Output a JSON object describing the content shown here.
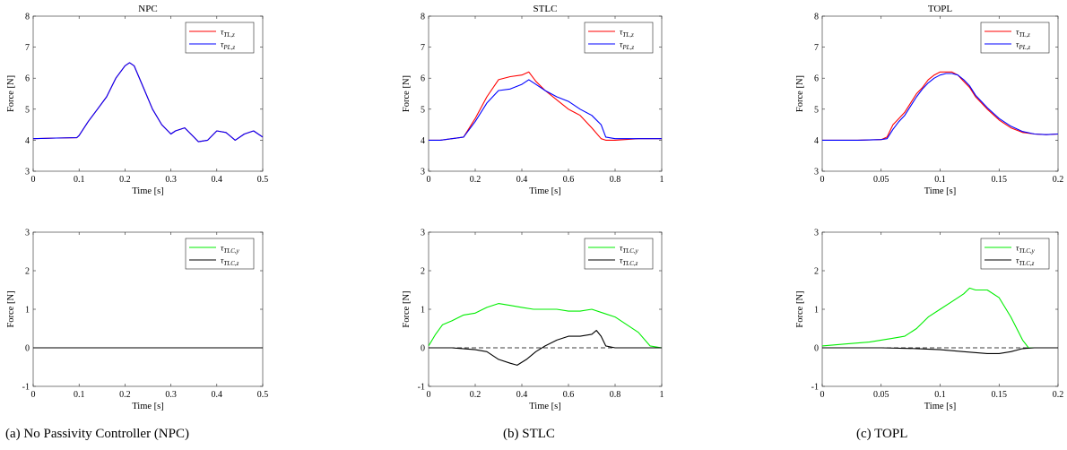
{
  "chart_data": [
    {
      "type": "line",
      "title": "NPC",
      "xlabel": "Time [s]",
      "ylabel": "Force [N]",
      "xlim": [
        0,
        0.5
      ],
      "ylim": [
        3,
        8
      ],
      "xticks": [
        "0",
        "0.1",
        "0.2",
        "0.3",
        "0.4",
        "0.5"
      ],
      "yticks": [
        "3",
        "4",
        "5",
        "6",
        "7",
        "8"
      ],
      "legend": "top-right",
      "series": [
        {
          "name": "τ_{TL,z}",
          "color": "#ff0000",
          "x": [
            0,
            0.05,
            0.095,
            0.1,
            0.12,
            0.14,
            0.16,
            0.18,
            0.2,
            0.21,
            0.22,
            0.24,
            0.26,
            0.28,
            0.3,
            0.31,
            0.33,
            0.35,
            0.36,
            0.38,
            0.4,
            0.42,
            0.44,
            0.46,
            0.48,
            0.5
          ],
          "y": [
            4.05,
            4.07,
            4.08,
            4.15,
            4.6,
            5.0,
            5.4,
            6.0,
            6.4,
            6.5,
            6.4,
            5.7,
            5.0,
            4.5,
            4.2,
            4.3,
            4.4,
            4.1,
            3.95,
            4.0,
            4.3,
            4.25,
            4.0,
            4.2,
            4.3,
            4.1
          ]
        },
        {
          "name": "τ_{PL,z}",
          "color": "#0000ff",
          "x": [
            0,
            0.05,
            0.095,
            0.1,
            0.12,
            0.14,
            0.16,
            0.18,
            0.2,
            0.21,
            0.22,
            0.24,
            0.26,
            0.28,
            0.3,
            0.31,
            0.33,
            0.35,
            0.36,
            0.38,
            0.4,
            0.42,
            0.44,
            0.46,
            0.48,
            0.5
          ],
          "y": [
            4.05,
            4.07,
            4.08,
            4.15,
            4.6,
            5.0,
            5.4,
            6.0,
            6.4,
            6.5,
            6.4,
            5.7,
            5.0,
            4.5,
            4.2,
            4.3,
            4.4,
            4.1,
            3.95,
            4.0,
            4.3,
            4.25,
            4.0,
            4.2,
            4.3,
            4.1
          ]
        }
      ]
    },
    {
      "type": "line",
      "title": "STLC",
      "xlabel": "Time [s]",
      "ylabel": "Force [N]",
      "xlim": [
        0,
        1
      ],
      "ylim": [
        3,
        8
      ],
      "xticks": [
        "0",
        "0.2",
        "0.4",
        "0.6",
        "0.8",
        "1"
      ],
      "yticks": [
        "3",
        "4",
        "5",
        "6",
        "7",
        "8"
      ],
      "legend": "top-right",
      "series": [
        {
          "name": "τ_{TL,z}",
          "color": "#ff0000",
          "x": [
            0,
            0.05,
            0.1,
            0.15,
            0.2,
            0.25,
            0.3,
            0.35,
            0.4,
            0.43,
            0.46,
            0.5,
            0.55,
            0.6,
            0.65,
            0.7,
            0.74,
            0.76,
            0.8,
            0.9,
            1.0
          ],
          "y": [
            4.0,
            4.0,
            4.05,
            4.1,
            4.7,
            5.4,
            5.95,
            6.05,
            6.1,
            6.2,
            5.9,
            5.6,
            5.3,
            5.0,
            4.8,
            4.4,
            4.05,
            4.0,
            4.0,
            4.05,
            4.05
          ]
        },
        {
          "name": "τ_{PL,z}",
          "color": "#0000ff",
          "x": [
            0,
            0.05,
            0.1,
            0.15,
            0.2,
            0.25,
            0.3,
            0.35,
            0.4,
            0.43,
            0.46,
            0.5,
            0.55,
            0.6,
            0.65,
            0.7,
            0.74,
            0.76,
            0.8,
            0.9,
            1.0
          ],
          "y": [
            4.0,
            4.0,
            4.05,
            4.1,
            4.6,
            5.2,
            5.6,
            5.65,
            5.8,
            5.95,
            5.8,
            5.6,
            5.4,
            5.25,
            5.0,
            4.8,
            4.5,
            4.1,
            4.05,
            4.05,
            4.05
          ]
        }
      ]
    },
    {
      "type": "line",
      "title": "TOPL",
      "xlabel": "Time [s]",
      "ylabel": "Force [N]",
      "xlim": [
        0,
        0.2
      ],
      "ylim": [
        3,
        8
      ],
      "xticks": [
        "0",
        "0.05",
        "0.1",
        "0.15",
        "0.2"
      ],
      "yticks": [
        "3",
        "4",
        "5",
        "6",
        "7",
        "8"
      ],
      "legend": "top-right",
      "series": [
        {
          "name": "τ_{TL,z}",
          "color": "#ff0000",
          "x": [
            0,
            0.03,
            0.05,
            0.055,
            0.06,
            0.065,
            0.07,
            0.075,
            0.08,
            0.085,
            0.09,
            0.095,
            0.1,
            0.105,
            0.11,
            0.115,
            0.12,
            0.125,
            0.13,
            0.14,
            0.15,
            0.16,
            0.17,
            0.18,
            0.19,
            0.2
          ],
          "y": [
            4.0,
            4.0,
            4.02,
            4.1,
            4.5,
            4.7,
            4.9,
            5.2,
            5.5,
            5.7,
            5.95,
            6.1,
            6.2,
            6.2,
            6.2,
            6.1,
            5.9,
            5.7,
            5.4,
            5.0,
            4.65,
            4.4,
            4.25,
            4.2,
            4.18,
            4.2
          ]
        },
        {
          "name": "τ_{PL,z}",
          "color": "#0000ff",
          "x": [
            0,
            0.03,
            0.05,
            0.055,
            0.06,
            0.065,
            0.07,
            0.075,
            0.08,
            0.085,
            0.09,
            0.095,
            0.1,
            0.105,
            0.11,
            0.115,
            0.12,
            0.125,
            0.13,
            0.14,
            0.15,
            0.16,
            0.17,
            0.18,
            0.19,
            0.2
          ],
          "y": [
            4.0,
            4.0,
            4.02,
            4.05,
            4.35,
            4.6,
            4.8,
            5.1,
            5.4,
            5.65,
            5.85,
            6.0,
            6.1,
            6.15,
            6.15,
            6.1,
            5.95,
            5.75,
            5.45,
            5.05,
            4.7,
            4.45,
            4.28,
            4.2,
            4.18,
            4.2
          ]
        }
      ]
    },
    {
      "type": "line",
      "title": "",
      "xlabel": "Time [s]",
      "ylabel": "Force [N]",
      "xlim": [
        0,
        0.5
      ],
      "ylim": [
        -1,
        3
      ],
      "xticks": [
        "0",
        "0.1",
        "0.2",
        "0.3",
        "0.4",
        "0.5"
      ],
      "yticks": [
        "-1",
        "0",
        "1",
        "2",
        "3"
      ],
      "legend": "top-right",
      "series": [
        {
          "name": "τ_{TLC,y}",
          "color": "#00ee00",
          "x": [
            0,
            0.5
          ],
          "y": [
            0,
            0
          ]
        },
        {
          "name": "τ_{TLC,z}",
          "color": "#000000",
          "x": [
            0,
            0.5
          ],
          "y": [
            0,
            0
          ]
        }
      ]
    },
    {
      "type": "line",
      "title": "",
      "xlabel": "Time [s]",
      "ylabel": "Force [N]",
      "xlim": [
        0,
        1
      ],
      "ylim": [
        -1,
        3
      ],
      "xticks": [
        "0",
        "0.2",
        "0.4",
        "0.6",
        "0.8",
        "1"
      ],
      "yticks": [
        "-1",
        "0",
        "1",
        "2",
        "3"
      ],
      "legend": "top-right",
      "series": [
        {
          "name": "τ_{TLC,y}",
          "color": "#00ee00",
          "x": [
            0,
            0.03,
            0.06,
            0.1,
            0.15,
            0.2,
            0.25,
            0.3,
            0.35,
            0.4,
            0.45,
            0.5,
            0.55,
            0.6,
            0.65,
            0.7,
            0.75,
            0.8,
            0.85,
            0.9,
            0.95,
            1.0
          ],
          "y": [
            0.05,
            0.35,
            0.6,
            0.7,
            0.85,
            0.9,
            1.05,
            1.15,
            1.1,
            1.05,
            1.0,
            1.0,
            1.0,
            0.95,
            0.95,
            1.0,
            0.9,
            0.8,
            0.6,
            0.4,
            0.05,
            0.0
          ]
        },
        {
          "name": "τ_{TLC,z}",
          "color": "#000000",
          "x": [
            0,
            0.1,
            0.2,
            0.25,
            0.3,
            0.35,
            0.38,
            0.42,
            0.46,
            0.5,
            0.55,
            0.6,
            0.65,
            0.7,
            0.72,
            0.74,
            0.76,
            0.8,
            0.9,
            1.0
          ],
          "y": [
            0.0,
            0.0,
            -0.05,
            -0.1,
            -0.3,
            -0.4,
            -0.45,
            -0.3,
            -0.1,
            0.05,
            0.2,
            0.3,
            0.3,
            0.35,
            0.45,
            0.3,
            0.05,
            0.0,
            0.0,
            0.0
          ]
        }
      ]
    },
    {
      "type": "line",
      "title": "",
      "xlabel": "Time [s]",
      "ylabel": "Force [N]",
      "xlim": [
        0,
        0.2
      ],
      "ylim": [
        -1,
        3
      ],
      "xticks": [
        "0",
        "0.05",
        "0.1",
        "0.15",
        "0.2"
      ],
      "yticks": [
        "-1",
        "0",
        "1",
        "2",
        "3"
      ],
      "legend": "top-right",
      "series": [
        {
          "name": "τ_{TLC,y}",
          "color": "#00ee00",
          "x": [
            0,
            0.02,
            0.04,
            0.05,
            0.06,
            0.07,
            0.08,
            0.09,
            0.1,
            0.11,
            0.12,
            0.125,
            0.13,
            0.14,
            0.15,
            0.16,
            0.17,
            0.175,
            0.18,
            0.2
          ],
          "y": [
            0.05,
            0.1,
            0.15,
            0.2,
            0.25,
            0.3,
            0.5,
            0.8,
            1.0,
            1.2,
            1.4,
            1.55,
            1.5,
            1.5,
            1.3,
            0.8,
            0.2,
            0.0,
            0.0,
            0.0
          ]
        },
        {
          "name": "τ_{TLC,z}",
          "color": "#000000",
          "x": [
            0,
            0.05,
            0.08,
            0.1,
            0.12,
            0.14,
            0.15,
            0.16,
            0.17,
            0.18,
            0.2
          ],
          "y": [
            0.0,
            0.0,
            -0.02,
            -0.05,
            -0.1,
            -0.15,
            -0.15,
            -0.1,
            -0.02,
            0.0,
            0.0
          ]
        }
      ]
    }
  ],
  "captions": [
    "(a) No Passivity Controller (NPC)",
    "(b) STLC",
    "(c) TOPL"
  ]
}
